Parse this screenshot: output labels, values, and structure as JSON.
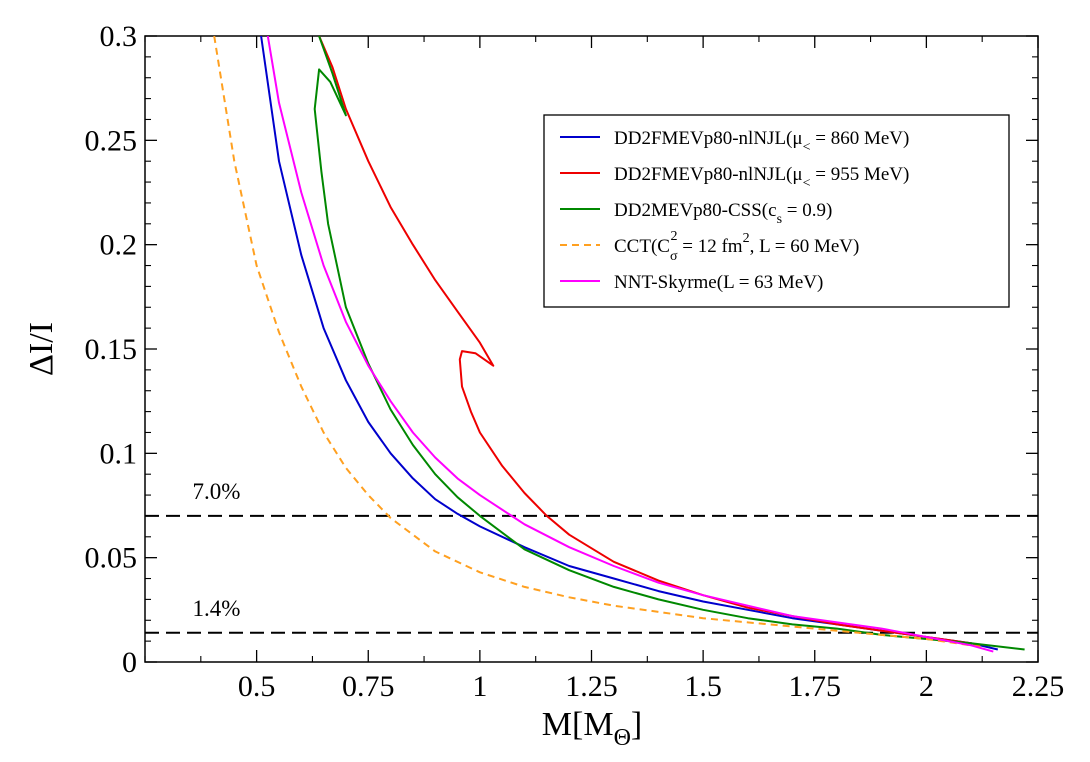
{
  "chart_data": {
    "type": "line",
    "xlabel": "M[M",
    "xlabel_sub": "Θ",
    "xlabel_end": "]",
    "ylabel": "ΔI/I",
    "xlim": [
      0.25,
      2.25
    ],
    "ylim": [
      0,
      0.3
    ],
    "x_ticks": [
      0.5,
      0.75,
      1,
      1.25,
      1.5,
      1.75,
      2,
      2.25
    ],
    "x_tick_labels": [
      "0.5",
      "0.75",
      "1",
      "1.25",
      "1.5",
      "1.75",
      "2",
      "2.25"
    ],
    "y_ticks": [
      0,
      0.05,
      0.1,
      0.15,
      0.2,
      0.25,
      0.3
    ],
    "y_tick_labels": [
      "0",
      "0.05",
      "0.1",
      "0.15",
      "0.2",
      "0.25",
      "0.3"
    ],
    "legend_position": "top-right",
    "hlines": [
      {
        "y": 0.07,
        "label": "7.0%",
        "label_x": 0.41
      },
      {
        "y": 0.014,
        "label": "1.4%",
        "label_x": 0.41
      }
    ],
    "series": [
      {
        "name": "DD2FMEVp80-nlNJL(μ< = 860 MeV)",
        "legend_main": "DD2FMEVp80-nlNJL(μ",
        "legend_sub": "<",
        "legend_tail": " = 860 MeV)",
        "color": "#0000cc",
        "dash": "none",
        "x": [
          0.51,
          0.55,
          0.6,
          0.65,
          0.7,
          0.75,
          0.8,
          0.85,
          0.9,
          0.95,
          1.0,
          1.1,
          1.2,
          1.3,
          1.4,
          1.5,
          1.6,
          1.7,
          1.8,
          1.9,
          2.0,
          2.1,
          2.16
        ],
        "y": [
          0.3,
          0.24,
          0.195,
          0.16,
          0.135,
          0.115,
          0.1,
          0.088,
          0.078,
          0.071,
          0.065,
          0.055,
          0.046,
          0.04,
          0.034,
          0.029,
          0.025,
          0.021,
          0.018,
          0.015,
          0.012,
          0.009,
          0.006
        ]
      },
      {
        "name": "DD2FMEVp80-nlNJL(μ< = 955 MeV)",
        "legend_main": "DD2FMEVp80-nlNJL(μ",
        "legend_sub": "<",
        "legend_tail": " = 955 MeV)",
        "color": "#ee0000",
        "dash": "none",
        "x": [
          0.64,
          0.67,
          0.7,
          0.75,
          0.8,
          0.85,
          0.9,
          0.95,
          1.0,
          1.03,
          0.99,
          0.96,
          0.955,
          0.96,
          0.98,
          1.0,
          1.05,
          1.1,
          1.15,
          1.2,
          1.3,
          1.4,
          1.5,
          1.6,
          1.7,
          1.8,
          1.9,
          2.0,
          2.1,
          2.12
        ],
        "y": [
          0.3,
          0.285,
          0.265,
          0.24,
          0.218,
          0.2,
          0.183,
          0.168,
          0.153,
          0.142,
          0.148,
          0.149,
          0.145,
          0.132,
          0.12,
          0.11,
          0.094,
          0.081,
          0.07,
          0.061,
          0.048,
          0.039,
          0.032,
          0.026,
          0.022,
          0.018,
          0.015,
          0.012,
          0.009,
          0.008
        ]
      },
      {
        "name": "DD2MEVp80-CSS(cs = 0.9)",
        "legend_main": "DD2MEVp80-CSS(c",
        "legend_sub": "s",
        "legend_tail": " = 0.9)",
        "color": "#008800",
        "dash": "none",
        "x": [
          0.64,
          0.67,
          0.7,
          0.665,
          0.64,
          0.63,
          0.635,
          0.645,
          0.66,
          0.7,
          0.75,
          0.8,
          0.85,
          0.9,
          0.95,
          1.0,
          1.1,
          1.2,
          1.3,
          1.4,
          1.5,
          1.6,
          1.7,
          1.8,
          1.9,
          2.0,
          2.1,
          2.22
        ],
        "y": [
          0.3,
          0.282,
          0.262,
          0.278,
          0.284,
          0.265,
          0.255,
          0.235,
          0.21,
          0.17,
          0.143,
          0.121,
          0.104,
          0.09,
          0.079,
          0.07,
          0.054,
          0.044,
          0.036,
          0.03,
          0.025,
          0.021,
          0.018,
          0.016,
          0.013,
          0.011,
          0.009,
          0.006
        ]
      },
      {
        "name": "CCT(Cσ2 = 12 fm2, L = 60 MeV)",
        "legend_main": "CCT(C",
        "legend_sub": "σ",
        "legend_sup": "2",
        "legend_tail": " = 12 fm",
        "legend_sup2": "2",
        "legend_tail2": ", L = 60 MeV)",
        "color": "#ffa020",
        "dash": "7,5",
        "x": [
          0.405,
          0.45,
          0.5,
          0.55,
          0.6,
          0.65,
          0.7,
          0.75,
          0.8,
          0.9,
          1.0,
          1.1,
          1.2,
          1.3,
          1.4,
          1.5,
          1.6,
          1.7,
          1.8,
          1.9,
          2.0,
          2.1,
          2.13
        ],
        "y": [
          0.3,
          0.24,
          0.19,
          0.158,
          0.132,
          0.11,
          0.093,
          0.08,
          0.069,
          0.053,
          0.043,
          0.036,
          0.031,
          0.027,
          0.024,
          0.021,
          0.019,
          0.017,
          0.015,
          0.013,
          0.011,
          0.008,
          0.007
        ]
      },
      {
        "name": "NNT-Skyrme(L = 63 MeV)",
        "legend_main": "NNT-Skyrme(L = 63 MeV)",
        "color": "#ff00ff",
        "dash": "none",
        "x": [
          0.525,
          0.55,
          0.6,
          0.65,
          0.7,
          0.75,
          0.8,
          0.85,
          0.9,
          0.95,
          1.0,
          1.1,
          1.2,
          1.3,
          1.4,
          1.5,
          1.6,
          1.7,
          1.8,
          1.9,
          2.0,
          2.1,
          2.15
        ],
        "y": [
          0.3,
          0.268,
          0.225,
          0.19,
          0.163,
          0.142,
          0.125,
          0.11,
          0.098,
          0.088,
          0.08,
          0.066,
          0.055,
          0.046,
          0.038,
          0.032,
          0.027,
          0.022,
          0.019,
          0.016,
          0.012,
          0.008,
          0.005
        ]
      }
    ]
  }
}
